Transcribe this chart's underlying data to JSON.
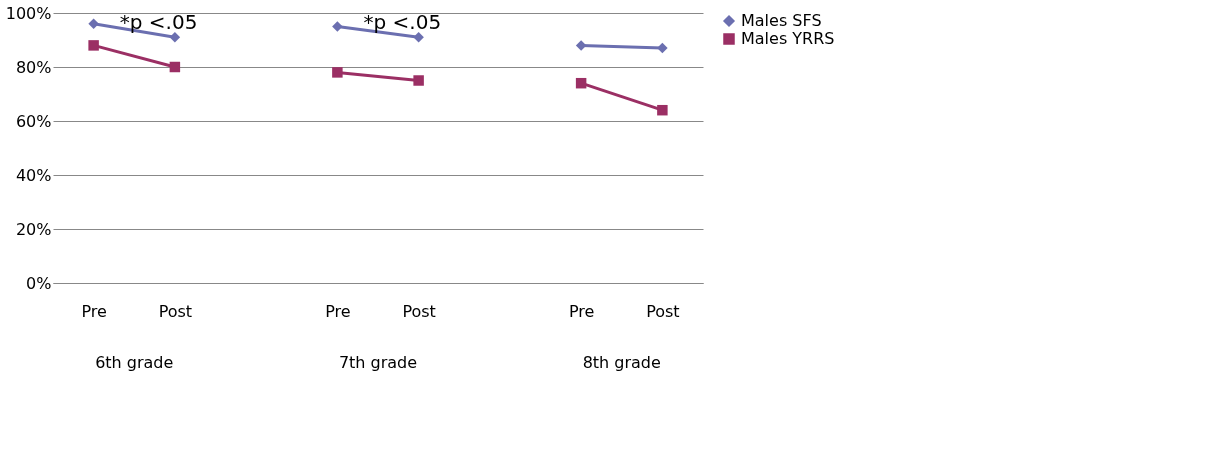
{
  "chart_data": {
    "type": "line",
    "categories": [
      "Pre",
      "Post",
      null,
      "Pre",
      "Post",
      null,
      "Pre",
      "Post"
    ],
    "series": [
      {
        "name": "Males SFS",
        "color": "#6b6fb0",
        "marker": "diamond",
        "values": [
          96,
          91,
          null,
          95,
          91,
          null,
          88,
          87
        ]
      },
      {
        "name": "Males YRRS",
        "color": "#9b2f64",
        "marker": "square",
        "values": [
          88,
          80,
          null,
          78,
          75,
          null,
          74,
          64
        ]
      }
    ],
    "ylim": [
      0,
      100
    ],
    "yticks": [
      {
        "value": 0,
        "label": "0%"
      },
      {
        "value": 20,
        "label": "20%"
      },
      {
        "value": 40,
        "label": "40%"
      },
      {
        "value": 60,
        "label": "60%"
      },
      {
        "value": 80,
        "label": "80%"
      },
      {
        "value": 100,
        "label": "100%"
      }
    ],
    "grid": "y",
    "legend": "right",
    "annotations": [
      "*p <.05",
      "*p <.05",
      "6th grade",
      "7th grade",
      "8th grade"
    ]
  }
}
